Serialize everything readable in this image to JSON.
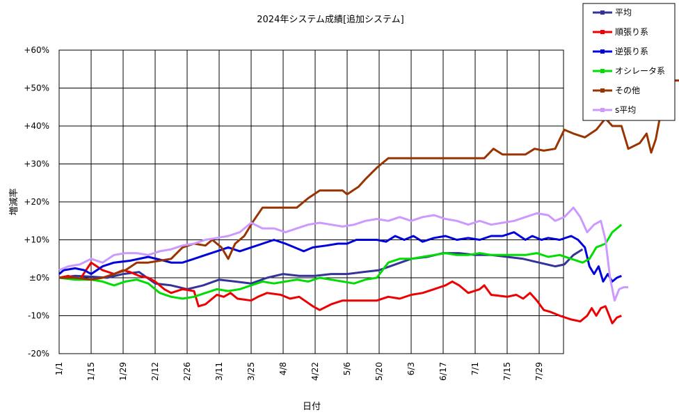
{
  "chart_data": {
    "type": "line",
    "title": "2024年システム成績[追加システム]",
    "xlabel": "日付",
    "ylabel": "増減率",
    "x_tick_labels": [
      "1/1",
      "1/15",
      "1/29",
      "2/12",
      "2/26",
      "3/11",
      "3/25",
      "4/8",
      "4/22",
      "5/6",
      "5/20",
      "6/3",
      "6/17",
      "7/1",
      "7/15",
      "7/29"
    ],
    "x_range_days": [
      1,
      219
    ],
    "y_tick_labels": [
      "-20%",
      "-10%",
      "±0%",
      "+10%",
      "+20%",
      "+30%",
      "+40%",
      "+50%",
      "+60%"
    ],
    "ylim": [
      -20,
      60
    ],
    "grid": true,
    "legend_position": "top-right outside",
    "series": [
      {
        "name": "平均",
        "color": "#333399",
        "points": [
          [
            1,
            0
          ],
          [
            8,
            0.5
          ],
          [
            15,
            0.3
          ],
          [
            22,
            0
          ],
          [
            29,
            1
          ],
          [
            36,
            1.5
          ],
          [
            43,
            -1.5
          ],
          [
            50,
            -2
          ],
          [
            57,
            -3
          ],
          [
            64,
            -2
          ],
          [
            71,
            -0.5
          ],
          [
            78,
            -1
          ],
          [
            85,
            -1.5
          ],
          [
            92,
            0
          ],
          [
            99,
            1
          ],
          [
            106,
            0.5
          ],
          [
            113,
            0.5
          ],
          [
            120,
            1
          ],
          [
            127,
            1
          ],
          [
            134,
            1.5
          ],
          [
            141,
            2
          ],
          [
            148,
            3.5
          ],
          [
            155,
            5
          ],
          [
            162,
            5.5
          ],
          [
            169,
            6.5
          ],
          [
            176,
            6.5
          ],
          [
            183,
            6
          ],
          [
            190,
            6
          ],
          [
            197,
            5.5
          ],
          [
            204,
            5
          ],
          [
            211,
            4
          ],
          [
            218,
            3
          ],
          [
            222,
            3.5
          ],
          [
            226,
            6
          ],
          [
            230,
            7.5
          ]
        ]
      },
      {
        "name": "順張り系",
        "color": "#ee0000",
        "points": [
          [
            1,
            0
          ],
          [
            5,
            0.5
          ],
          [
            10,
            -0.5
          ],
          [
            15,
            4
          ],
          [
            20,
            2
          ],
          [
            25,
            1
          ],
          [
            29,
            2
          ],
          [
            32,
            1.5
          ],
          [
            36,
            0.5
          ],
          [
            40,
            0
          ],
          [
            43,
            -1
          ],
          [
            47,
            -3
          ],
          [
            50,
            -4
          ],
          [
            55,
            -3
          ],
          [
            60,
            -3.5
          ],
          [
            62,
            -7.5
          ],
          [
            65,
            -7
          ],
          [
            70,
            -4.5
          ],
          [
            73,
            -5
          ],
          [
            76,
            -4
          ],
          [
            79,
            -5.5
          ],
          [
            85,
            -6
          ],
          [
            88,
            -5
          ],
          [
            92,
            -4
          ],
          [
            98,
            -4.5
          ],
          [
            102,
            -5.5
          ],
          [
            106,
            -5
          ],
          [
            112,
            -7.5
          ],
          [
            115,
            -8.5
          ],
          [
            120,
            -7
          ],
          [
            125,
            -6
          ],
          [
            130,
            -6
          ],
          [
            135,
            -6
          ],
          [
            140,
            -6
          ],
          [
            145,
            -5
          ],
          [
            150,
            -5.5
          ],
          [
            155,
            -4.5
          ],
          [
            160,
            -4
          ],
          [
            165,
            -3
          ],
          [
            170,
            -2
          ],
          [
            173,
            -1
          ],
          [
            176,
            -2
          ],
          [
            180,
            -4
          ],
          [
            185,
            -3
          ],
          [
            187,
            -2
          ],
          [
            190,
            -4.5
          ],
          [
            197,
            -5
          ],
          [
            201,
            -4.5
          ],
          [
            204,
            -5.5
          ],
          [
            207,
            -4
          ],
          [
            210,
            -6
          ],
          [
            213,
            -8.5
          ],
          [
            216,
            -9
          ],
          [
            220,
            -10
          ],
          [
            225,
            -11
          ],
          [
            229,
            -11.5
          ],
          [
            232,
            -10
          ],
          [
            234,
            -8
          ],
          [
            236,
            -10
          ],
          [
            238,
            -8
          ],
          [
            240,
            -7.5
          ],
          [
            241,
            -9
          ],
          [
            243,
            -12
          ],
          [
            245,
            -10.5
          ],
          [
            247,
            -10
          ]
        ]
      },
      {
        "name": "逆張り系",
        "color": "#0000dd",
        "points": [
          [
            1,
            1
          ],
          [
            3,
            2
          ],
          [
            8,
            2.5
          ],
          [
            12,
            2
          ],
          [
            15,
            1
          ],
          [
            20,
            3
          ],
          [
            25,
            4
          ],
          [
            32,
            4.5
          ],
          [
            40,
            5.5
          ],
          [
            47,
            4.5
          ],
          [
            50,
            4
          ],
          [
            55,
            4
          ],
          [
            60,
            5
          ],
          [
            65,
            6
          ],
          [
            70,
            7
          ],
          [
            75,
            8
          ],
          [
            80,
            7
          ],
          [
            85,
            8
          ],
          [
            90,
            9
          ],
          [
            95,
            10
          ],
          [
            100,
            9
          ],
          [
            104,
            8
          ],
          [
            108,
            7
          ],
          [
            112,
            8
          ],
          [
            118,
            8.5
          ],
          [
            123,
            9
          ],
          [
            127,
            9
          ],
          [
            131,
            10
          ],
          [
            136,
            10
          ],
          [
            140,
            10
          ],
          [
            144,
            9.5
          ],
          [
            148,
            11
          ],
          [
            152,
            10
          ],
          [
            156,
            11
          ],
          [
            160,
            9.5
          ],
          [
            165,
            10.5
          ],
          [
            170,
            11
          ],
          [
            175,
            10
          ],
          [
            180,
            10.5
          ],
          [
            185,
            10
          ],
          [
            190,
            11
          ],
          [
            195,
            11
          ],
          [
            200,
            12
          ],
          [
            205,
            10
          ],
          [
            208,
            11
          ],
          [
            212,
            10
          ],
          [
            215,
            10.5
          ],
          [
            220,
            10
          ],
          [
            225,
            11
          ],
          [
            228,
            10
          ],
          [
            231,
            8
          ],
          [
            233,
            3
          ],
          [
            235,
            1
          ],
          [
            237,
            3
          ],
          [
            239,
            -1
          ],
          [
            241,
            1
          ],
          [
            243,
            -1
          ],
          [
            245,
            0
          ],
          [
            247,
            0.5
          ]
        ]
      },
      {
        "name": "オシレータ系",
        "color": "#00dd00",
        "points": [
          [
            1,
            0
          ],
          [
            8,
            -0.5
          ],
          [
            15,
            -0.5
          ],
          [
            20,
            -1
          ],
          [
            25,
            -2
          ],
          [
            30,
            -1
          ],
          [
            35,
            -0.5
          ],
          [
            40,
            -1.5
          ],
          [
            45,
            -4
          ],
          [
            50,
            -5
          ],
          [
            55,
            -5.5
          ],
          [
            60,
            -5
          ],
          [
            65,
            -4
          ],
          [
            70,
            -3
          ],
          [
            75,
            -3.5
          ],
          [
            80,
            -3
          ],
          [
            85,
            -2
          ],
          [
            90,
            -1
          ],
          [
            95,
            -1.5
          ],
          [
            100,
            -1
          ],
          [
            105,
            -0.5
          ],
          [
            110,
            -1
          ],
          [
            115,
            0
          ],
          [
            120,
            -0.5
          ],
          [
            125,
            -1
          ],
          [
            130,
            -1.5
          ],
          [
            135,
            -0.5
          ],
          [
            140,
            0
          ],
          [
            145,
            4
          ],
          [
            150,
            5
          ],
          [
            155,
            5
          ],
          [
            160,
            5.5
          ],
          [
            165,
            6
          ],
          [
            170,
            6.5
          ],
          [
            175,
            6
          ],
          [
            180,
            6
          ],
          [
            185,
            6.5
          ],
          [
            190,
            6
          ],
          [
            195,
            6
          ],
          [
            200,
            6
          ],
          [
            205,
            6
          ],
          [
            210,
            6.5
          ],
          [
            215,
            5.5
          ],
          [
            220,
            6
          ],
          [
            225,
            5
          ],
          [
            230,
            4
          ],
          [
            233,
            5
          ],
          [
            236,
            8
          ],
          [
            240,
            9
          ],
          [
            243,
            12
          ],
          [
            247,
            14
          ]
        ]
      },
      {
        "name": "その他",
        "color": "#993300",
        "points": [
          [
            1,
            0
          ],
          [
            8,
            0
          ],
          [
            15,
            -0.5
          ],
          [
            20,
            0
          ],
          [
            25,
            1
          ],
          [
            30,
            2
          ],
          [
            35,
            4
          ],
          [
            40,
            4
          ],
          [
            45,
            4.5
          ],
          [
            50,
            5
          ],
          [
            55,
            8
          ],
          [
            60,
            9
          ],
          [
            65,
            8.5
          ],
          [
            68,
            10
          ],
          [
            72,
            8
          ],
          [
            75,
            5
          ],
          [
            78,
            9
          ],
          [
            82,
            11
          ],
          [
            86,
            15
          ],
          [
            90,
            18.5
          ],
          [
            95,
            18.5
          ],
          [
            100,
            18.5
          ],
          [
            105,
            18.5
          ],
          [
            110,
            21
          ],
          [
            115,
            23
          ],
          [
            120,
            23
          ],
          [
            125,
            23
          ],
          [
            127,
            22
          ],
          [
            132,
            24
          ],
          [
            135,
            26
          ],
          [
            140,
            29
          ],
          [
            145,
            31.5
          ],
          [
            150,
            31.5
          ],
          [
            160,
            31.5
          ],
          [
            170,
            31.5
          ],
          [
            180,
            31.5
          ],
          [
            187,
            31.5
          ],
          [
            191,
            34
          ],
          [
            195,
            32.5
          ],
          [
            205,
            32.5
          ],
          [
            209,
            34
          ],
          [
            213,
            33.5
          ],
          [
            218,
            34
          ],
          [
            222,
            39
          ],
          [
            226,
            38
          ],
          [
            231,
            37
          ],
          [
            236,
            39
          ],
          [
            240,
            42
          ],
          [
            243,
            40
          ],
          [
            247,
            40
          ],
          [
            250,
            34
          ],
          [
            255,
            35.5
          ],
          [
            258,
            38
          ],
          [
            260,
            33
          ],
          [
            262,
            36.5
          ],
          [
            265,
            46
          ],
          [
            268,
            52
          ],
          [
            274,
            52
          ]
        ]
      },
      {
        "name": "s平均",
        "color": "#cc99ff",
        "points": [
          [
            1,
            2
          ],
          [
            5,
            3
          ],
          [
            10,
            3.5
          ],
          [
            15,
            5
          ],
          [
            20,
            4
          ],
          [
            25,
            6
          ],
          [
            30,
            6.5
          ],
          [
            35,
            6.5
          ],
          [
            40,
            6
          ],
          [
            45,
            7
          ],
          [
            50,
            7.5
          ],
          [
            55,
            8.5
          ],
          [
            60,
            9
          ],
          [
            65,
            10
          ],
          [
            70,
            10.5
          ],
          [
            75,
            11
          ],
          [
            80,
            12
          ],
          [
            85,
            14.5
          ],
          [
            90,
            13
          ],
          [
            95,
            13
          ],
          [
            100,
            12
          ],
          [
            105,
            13
          ],
          [
            110,
            14
          ],
          [
            115,
            14.5
          ],
          [
            120,
            14
          ],
          [
            125,
            13.5
          ],
          [
            130,
            14
          ],
          [
            135,
            15
          ],
          [
            140,
            15.5
          ],
          [
            145,
            15
          ],
          [
            150,
            16
          ],
          [
            155,
            15
          ],
          [
            160,
            16
          ],
          [
            165,
            16.5
          ],
          [
            170,
            15.5
          ],
          [
            175,
            15
          ],
          [
            180,
            14
          ],
          [
            185,
            15
          ],
          [
            190,
            14
          ],
          [
            195,
            14.5
          ],
          [
            200,
            15
          ],
          [
            205,
            16
          ],
          [
            210,
            17
          ],
          [
            215,
            16.5
          ],
          [
            218,
            15
          ],
          [
            222,
            16
          ],
          [
            226,
            18.5
          ],
          [
            229,
            16
          ],
          [
            232,
            12
          ],
          [
            235,
            14
          ],
          [
            238,
            15
          ],
          [
            240,
            10
          ],
          [
            242,
            0
          ],
          [
            244,
            -6
          ],
          [
            246,
            -3
          ],
          [
            248,
            -2.5
          ],
          [
            250,
            -2.5
          ]
        ]
      }
    ]
  }
}
